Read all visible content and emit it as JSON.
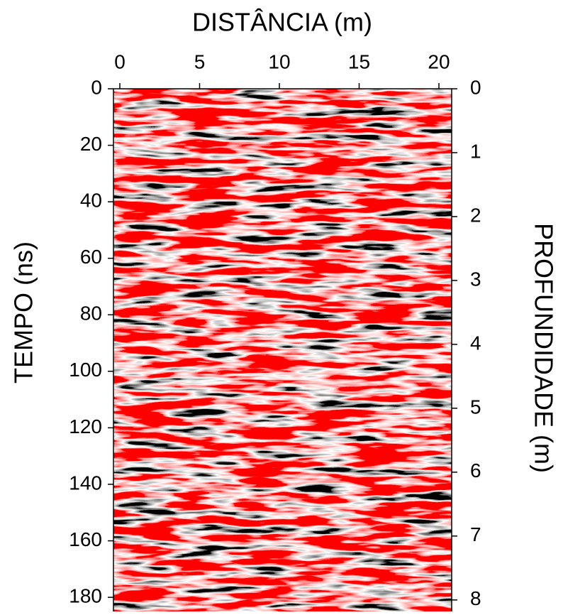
{
  "chart_data": {
    "type": "radargram",
    "title": "DISTÂNCIA (m)",
    "ylabel": "TEMPO (ns)",
    "y2label": "PROFUNDIDADE (m)",
    "xlim": [
      -0.4,
      20.8
    ],
    "xticks": [
      0,
      5,
      10,
      15,
      20
    ],
    "ylim": [
      185,
      0
    ],
    "yticks": [
      0,
      20,
      40,
      60,
      80,
      100,
      120,
      140,
      160,
      180
    ],
    "y2lim": [
      8.18,
      0
    ],
    "y2ticks": [
      0,
      1,
      2,
      3,
      4,
      5,
      6,
      7,
      8
    ],
    "colors": [
      "#000000",
      "#ffffff",
      "#ff0000"
    ]
  }
}
